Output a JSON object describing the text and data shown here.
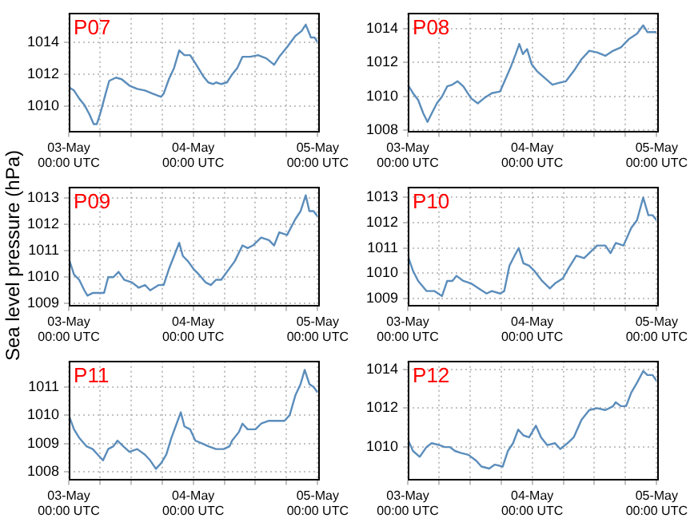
{
  "chart_data": [
    {
      "type": "line",
      "title": "P07",
      "xlim": [
        "--05-03T00:00",
        "--05-05T00:00"
      ],
      "ylim": [
        1008.4,
        1015.8
      ],
      "yticks": [
        1010,
        1012,
        1014
      ],
      "grid": true,
      "xticks": [
        {
          "value": "--05-03T00:00",
          "label": "03-May\n00:00 UTC"
        },
        {
          "value": "--05-03T06:00",
          "label": null
        },
        {
          "value": "--05-03T12:00",
          "label": null
        },
        {
          "value": "--05-03T18:00",
          "label": null
        },
        {
          "value": "--05-04T00:00",
          "label": "04-May\n00:00 UTC"
        },
        {
          "value": "--05-04T06:00",
          "label": null
        },
        {
          "value": "--05-04T12:00",
          "label": null
        },
        {
          "value": "--05-04T18:00",
          "label": null
        },
        {
          "value": "--05-05T00:00",
          "label": "05-May\n00:00 UTC"
        }
      ],
      "x": [
        "--05-03T00:00",
        "--05-03T01:00",
        "--05-03T02:00",
        "--05-03T03:00",
        "--05-03T04:00",
        "--05-03T04:48",
        "--05-03T05:24",
        "--05-03T06:06",
        "--05-03T07:06",
        "--05-03T07:48",
        "--05-03T09:06",
        "--05-03T10:12",
        "--05-03T11:42",
        "--05-03T13:12",
        "--05-03T14:42",
        "--05-03T16:12",
        "--05-03T17:48",
        "--05-03T18:18",
        "--05-03T19:18",
        "--05-03T20:18",
        "--05-03T21:18",
        "--05-03T22:18",
        "--05-03T23:24",
        "--05-04T00:24",
        "--05-04T01:54",
        "--05-04T02:54",
        "--05-04T03:54",
        "--05-04T04:24",
        "--05-04T05:24",
        "--05-04T06:30",
        "--05-04T07:30",
        "--05-04T08:30",
        "--05-04T09:30",
        "--05-04T11:00",
        "--05-04T12:30",
        "--05-04T14:06",
        "--05-04T15:36",
        "--05-04T16:36",
        "--05-04T18:06",
        "--05-04T19:42",
        "--05-04T20:54",
        "--05-04T21:42",
        "--05-04T22:42",
        "--05-04T23:24",
        "--05-05T00:00"
      ],
      "series": [
        {
          "color": "#5b8dbb",
          "values": [
            1011.2,
            1011.0,
            1010.5,
            1010.1,
            1009.5,
            1008.9,
            1008.9,
            1009.6,
            1010.8,
            1011.6,
            1011.8,
            1011.7,
            1011.3,
            1011.1,
            1011.0,
            1010.8,
            1010.6,
            1010.8,
            1011.7,
            1012.4,
            1013.5,
            1013.2,
            1013.2,
            1012.7,
            1011.9,
            1011.5,
            1011.4,
            1011.5,
            1011.4,
            1011.5,
            1012.0,
            1012.4,
            1013.1,
            1013.1,
            1013.2,
            1013.0,
            1012.6,
            1013.1,
            1013.7,
            1014.4,
            1014.7,
            1015.1,
            1014.3,
            1014.3,
            1014.0
          ]
        }
      ]
    },
    {
      "type": "line",
      "title": "P08",
      "xlim": [
        "--05-03T00:00",
        "--05-05T00:00"
      ],
      "ylim": [
        1007.9,
        1014.9
      ],
      "yticks": [
        1008,
        1010,
        1012,
        1014
      ],
      "grid": true,
      "xticks": [
        {
          "value": "--05-03T00:00",
          "label": "03-May\n00:00 UTC"
        },
        {
          "value": "--05-03T06:00",
          "label": null
        },
        {
          "value": "--05-03T12:00",
          "label": null
        },
        {
          "value": "--05-03T18:00",
          "label": null
        },
        {
          "value": "--05-04T00:00",
          "label": "04-May\n00:00 UTC"
        },
        {
          "value": "--05-04T06:00",
          "label": null
        },
        {
          "value": "--05-04T12:00",
          "label": null
        },
        {
          "value": "--05-04T18:00",
          "label": null
        },
        {
          "value": "--05-05T00:00",
          "label": "05-May\n00:00 UTC"
        }
      ],
      "x": [
        "--05-03T00:00",
        "--05-03T01:00",
        "--05-03T02:00",
        "--05-03T03:00",
        "--05-03T03:48",
        "--05-03T04:36",
        "--05-03T05:36",
        "--05-03T06:36",
        "--05-03T07:36",
        "--05-03T08:36",
        "--05-03T09:36",
        "--05-03T10:42",
        "--05-03T12:12",
        "--05-03T13:30",
        "--05-03T14:42",
        "--05-03T16:12",
        "--05-03T17:48",
        "--05-03T18:48",
        "--05-03T19:48",
        "--05-03T20:48",
        "--05-03T21:30",
        "--05-03T22:12",
        "--05-03T23:00",
        "--05-03T23:54",
        "--05-04T00:54",
        "--05-04T02:24",
        "--05-04T03:54",
        "--05-04T05:06",
        "--05-04T06:30",
        "--05-04T08:00",
        "--05-04T09:30",
        "--05-04T11:00",
        "--05-04T12:30",
        "--05-04T14:06",
        "--05-04T15:36",
        "--05-04T17:06",
        "--05-04T18:42",
        "--05-04T20:12",
        "--05-04T21:24",
        "--05-04T22:12",
        "--05-05T00:00"
      ],
      "series": [
        {
          "color": "#5b8dbb",
          "values": [
            1010.7,
            1010.2,
            1009.8,
            1009.0,
            1008.5,
            1009.0,
            1009.6,
            1010.0,
            1010.6,
            1010.7,
            1010.9,
            1010.6,
            1009.9,
            1009.6,
            1009.9,
            1010.2,
            1010.3,
            1011.0,
            1011.7,
            1012.5,
            1013.1,
            1012.5,
            1012.8,
            1011.9,
            1011.5,
            1011.1,
            1010.7,
            1010.8,
            1010.9,
            1011.5,
            1012.2,
            1012.7,
            1012.6,
            1012.4,
            1012.7,
            1012.9,
            1013.4,
            1013.7,
            1014.2,
            1013.8,
            1013.8
          ]
        }
      ]
    },
    {
      "type": "line",
      "title": "P09",
      "ylabel": "Sea level pressure (hPa)",
      "xlim": [
        "--05-03T00:00",
        "--05-05T00:00"
      ],
      "ylim": [
        1008.9,
        1013.4
      ],
      "yticks": [
        1009,
        1010,
        1011,
        1012,
        1013
      ],
      "grid": true,
      "xticks": [
        {
          "value": "--05-03T00:00",
          "label": "03-May\n00:00 UTC"
        },
        {
          "value": "--05-03T06:00",
          "label": null
        },
        {
          "value": "--05-03T12:00",
          "label": null
        },
        {
          "value": "--05-03T18:00",
          "label": null
        },
        {
          "value": "--05-04T00:00",
          "label": "04-May\n00:00 UTC"
        },
        {
          "value": "--05-04T06:00",
          "label": null
        },
        {
          "value": "--05-04T12:00",
          "label": null
        },
        {
          "value": "--05-04T18:00",
          "label": null
        },
        {
          "value": "--05-05T00:00",
          "label": "05-May\n00:00 UTC"
        }
      ],
      "x": [
        "--05-03T00:00",
        "--05-03T01:00",
        "--05-03T02:00",
        "--05-03T03:00",
        "--05-03T03:36",
        "--05-03T04:36",
        "--05-03T06:06",
        "--05-03T06:48",
        "--05-03T07:36",
        "--05-03T08:36",
        "--05-03T09:36",
        "--05-03T10:42",
        "--05-03T12:12",
        "--05-03T13:30",
        "--05-03T14:42",
        "--05-03T15:42",
        "--05-03T17:18",
        "--05-03T18:18",
        "--05-03T19:18",
        "--05-03T20:18",
        "--05-03T21:18",
        "--05-03T22:00",
        "--05-03T23:00",
        "--05-04T00:06",
        "--05-04T01:06",
        "--05-04T02:24",
        "--05-04T03:24",
        "--05-04T04:24",
        "--05-04T05:24",
        "--05-04T06:30",
        "--05-04T08:00",
        "--05-04T09:30",
        "--05-04T10:30",
        "--05-04T11:30",
        "--05-04T13:06",
        "--05-04T14:36",
        "--05-04T15:36",
        "--05-04T16:36",
        "--05-04T18:06",
        "--05-04T19:42",
        "--05-04T20:42",
        "--05-04T21:42",
        "--05-04T22:24",
        "--05-04T23:12",
        "--05-05T00:00"
      ],
      "series": [
        {
          "color": "#5b8dbb",
          "values": [
            1010.7,
            1010.1,
            1009.9,
            1009.5,
            1009.3,
            1009.4,
            1009.4,
            1009.4,
            1010.0,
            1010.0,
            1010.2,
            1009.9,
            1009.8,
            1009.6,
            1009.7,
            1009.5,
            1009.7,
            1009.7,
            1010.3,
            1010.8,
            1011.3,
            1010.8,
            1010.6,
            1010.3,
            1010.1,
            1009.8,
            1009.7,
            1009.9,
            1009.9,
            1010.2,
            1010.6,
            1011.2,
            1011.1,
            1011.2,
            1011.5,
            1011.4,
            1011.2,
            1011.7,
            1011.6,
            1012.2,
            1012.5,
            1013.1,
            1012.5,
            1012.5,
            1012.3
          ]
        }
      ]
    },
    {
      "type": "line",
      "title": "P10",
      "xlim": [
        "--05-03T00:00",
        "--05-05T00:00"
      ],
      "ylim": [
        1008.7,
        1013.4
      ],
      "yticks": [
        1009,
        1010,
        1011,
        1012,
        1013
      ],
      "grid": true,
      "xticks": [
        {
          "value": "--05-03T00:00",
          "label": "03-May\n00:00 UTC"
        },
        {
          "value": "--05-03T06:00",
          "label": null
        },
        {
          "value": "--05-03T12:00",
          "label": null
        },
        {
          "value": "--05-03T18:00",
          "label": null
        },
        {
          "value": "--05-04T00:00",
          "label": "04-May\n00:00 UTC"
        },
        {
          "value": "--05-04T06:00",
          "label": null
        },
        {
          "value": "--05-04T12:00",
          "label": null
        },
        {
          "value": "--05-04T18:00",
          "label": null
        },
        {
          "value": "--05-05T00:00",
          "label": "05-May\n00:00 UTC"
        }
      ],
      "x": [
        "--05-03T00:00",
        "--05-03T01:00",
        "--05-03T02:00",
        "--05-03T03:36",
        "--05-03T05:06",
        "--05-03T06:36",
        "--05-03T07:36",
        "--05-03T08:36",
        "--05-03T09:24",
        "--05-03T10:42",
        "--05-03T12:12",
        "--05-03T13:42",
        "--05-03T15:12",
        "--05-03T16:12",
        "--05-03T17:48",
        "--05-03T18:36",
        "--05-03T19:36",
        "--05-03T20:36",
        "--05-03T21:24",
        "--05-03T22:18",
        "--05-03T23:24",
        "--05-04T00:24",
        "--05-04T01:54",
        "--05-04T03:24",
        "--05-04T04:24",
        "--05-04T05:54",
        "--05-04T07:00",
        "--05-04T08:30",
        "--05-04T10:00",
        "--05-04T11:00",
        "--05-04T12:30",
        "--05-04T14:06",
        "--05-04T15:06",
        "--05-04T16:06",
        "--05-04T17:36",
        "--05-04T19:06",
        "--05-04T20:12",
        "--05-04T21:24",
        "--05-04T22:24",
        "--05-04T23:12",
        "--05-05T00:00"
      ],
      "series": [
        {
          "color": "#5b8dbb",
          "values": [
            1010.7,
            1010.1,
            1009.7,
            1009.3,
            1009.3,
            1009.1,
            1009.7,
            1009.7,
            1009.9,
            1009.7,
            1009.6,
            1009.4,
            1009.2,
            1009.3,
            1009.2,
            1009.3,
            1010.3,
            1010.7,
            1011.0,
            1010.4,
            1010.3,
            1010.1,
            1009.7,
            1009.4,
            1009.6,
            1009.8,
            1010.2,
            1010.7,
            1010.6,
            1010.8,
            1011.1,
            1011.1,
            1010.8,
            1011.2,
            1011.1,
            1011.8,
            1012.1,
            1013.0,
            1012.3,
            1012.3,
            1012.1
          ]
        }
      ]
    },
    {
      "type": "line",
      "title": "P11",
      "xlim": [
        "--05-03T00:00",
        "--05-05T00:00"
      ],
      "ylim": [
        1007.7,
        1011.9
      ],
      "yticks": [
        1008,
        1009,
        1010,
        1011
      ],
      "grid": true,
      "xticks": [
        {
          "value": "--05-03T00:00",
          "label": "03-May\n00:00 UTC"
        },
        {
          "value": "--05-03T06:00",
          "label": null
        },
        {
          "value": "--05-03T12:00",
          "label": null
        },
        {
          "value": "--05-03T18:00",
          "label": null
        },
        {
          "value": "--05-04T00:00",
          "label": "04-May\n00:00 UTC"
        },
        {
          "value": "--05-04T06:00",
          "label": null
        },
        {
          "value": "--05-04T12:00",
          "label": null
        },
        {
          "value": "--05-04T18:00",
          "label": null
        },
        {
          "value": "--05-05T00:00",
          "label": "05-May\n00:00 UTC"
        }
      ],
      "x": [
        "--05-03T00:00",
        "--05-03T01:00",
        "--05-03T02:00",
        "--05-03T03:24",
        "--05-03T04:36",
        "--05-03T05:36",
        "--05-03T06:36",
        "--05-03T07:36",
        "--05-03T08:36",
        "--05-03T09:24",
        "--05-03T10:30",
        "--05-03T11:42",
        "--05-03T13:12",
        "--05-03T14:42",
        "--05-03T15:42",
        "--05-03T16:48",
        "--05-03T17:48",
        "--05-03T18:48",
        "--05-03T19:48",
        "--05-03T20:48",
        "--05-03T21:36",
        "--05-03T22:18",
        "--05-03T23:24",
        "--05-04T00:24",
        "--05-04T01:42",
        "--05-04T02:54",
        "--05-04T04:24",
        "--05-04T05:54",
        "--05-04T07:00",
        "--05-04T07:30",
        "--05-04T08:48",
        "--05-04T09:30",
        "--05-04T10:30",
        "--05-04T12:00",
        "--05-04T13:06",
        "--05-04T14:36",
        "--05-04T16:06",
        "--05-04T17:36",
        "--05-04T18:36",
        "--05-04T19:42",
        "--05-04T20:42",
        "--05-04T21:30",
        "--05-04T22:24",
        "--05-04T23:12",
        "--05-05T00:00"
      ],
      "series": [
        {
          "color": "#5b8dbb",
          "values": [
            1010.0,
            1009.5,
            1009.2,
            1008.9,
            1008.8,
            1008.6,
            1008.4,
            1008.8,
            1008.9,
            1009.1,
            1008.9,
            1008.7,
            1008.8,
            1008.6,
            1008.4,
            1008.1,
            1008.3,
            1008.6,
            1009.2,
            1009.7,
            1010.1,
            1009.6,
            1009.5,
            1009.1,
            1009.0,
            1008.9,
            1008.8,
            1008.8,
            1008.9,
            1009.1,
            1009.4,
            1009.7,
            1009.5,
            1009.5,
            1009.7,
            1009.8,
            1009.8,
            1009.8,
            1010.0,
            1010.7,
            1011.1,
            1011.6,
            1011.1,
            1011.0,
            1010.8
          ]
        }
      ]
    },
    {
      "type": "line",
      "title": "P12",
      "xlim": [
        "--05-03T00:00",
        "--05-05T00:00"
      ],
      "ylim": [
        1008.3,
        1014.4
      ],
      "yticks": [
        1010,
        1012,
        1014
      ],
      "grid": true,
      "xticks": [
        {
          "value": "--05-03T00:00",
          "label": "03-May\n00:00 UTC"
        },
        {
          "value": "--05-03T06:00",
          "label": null
        },
        {
          "value": "--05-03T12:00",
          "label": null
        },
        {
          "value": "--05-03T18:00",
          "label": null
        },
        {
          "value": "--05-04T00:00",
          "label": "04-May\n00:00 UTC"
        },
        {
          "value": "--05-04T06:00",
          "label": null
        },
        {
          "value": "--05-04T12:00",
          "label": null
        },
        {
          "value": "--05-04T18:00",
          "label": null
        },
        {
          "value": "--05-05T00:00",
          "label": "05-May\n00:00 UTC"
        }
      ],
      "x": [
        "--05-03T00:00",
        "--05-03T01:00",
        "--05-03T02:18",
        "--05-03T03:36",
        "--05-03T04:36",
        "--05-03T06:06",
        "--05-03T07:06",
        "--05-03T08:06",
        "--05-03T09:06",
        "--05-03T10:12",
        "--05-03T11:42",
        "--05-03T13:12",
        "--05-03T14:12",
        "--05-03T15:42",
        "--05-03T16:48",
        "--05-03T18:18",
        "--05-03T19:18",
        "--05-03T20:18",
        "--05-03T21:18",
        "--05-03T22:18",
        "--05-03T23:24",
        "--05-04T00:42",
        "--05-04T01:42",
        "--05-04T02:54",
        "--05-04T04:24",
        "--05-04T05:24",
        "--05-04T06:48",
        "--05-04T08:00",
        "--05-04T09:30",
        "--05-04T11:00",
        "--05-04T12:30",
        "--05-04T14:06",
        "--05-04T15:36",
        "--05-04T16:06",
        "--05-04T17:06",
        "--05-04T18:06",
        "--05-04T19:06",
        "--05-04T20:12",
        "--05-04T21:24",
        "--05-04T22:12",
        "--05-04T23:12",
        "--05-05T00:00"
      ],
      "series": [
        {
          "color": "#5b8dbb",
          "values": [
            1010.4,
            1009.8,
            1009.5,
            1010.0,
            1010.2,
            1010.1,
            1010.0,
            1010.0,
            1009.8,
            1009.7,
            1009.6,
            1009.3,
            1009.0,
            1008.9,
            1009.1,
            1009.0,
            1009.8,
            1010.2,
            1010.9,
            1010.6,
            1010.5,
            1011.1,
            1010.5,
            1010.1,
            1010.2,
            1009.9,
            1010.2,
            1010.5,
            1011.4,
            1011.9,
            1012.0,
            1011.9,
            1012.1,
            1012.3,
            1012.1,
            1012.1,
            1012.8,
            1013.3,
            1013.9,
            1013.7,
            1013.7,
            1013.4
          ]
        }
      ]
    }
  ]
}
